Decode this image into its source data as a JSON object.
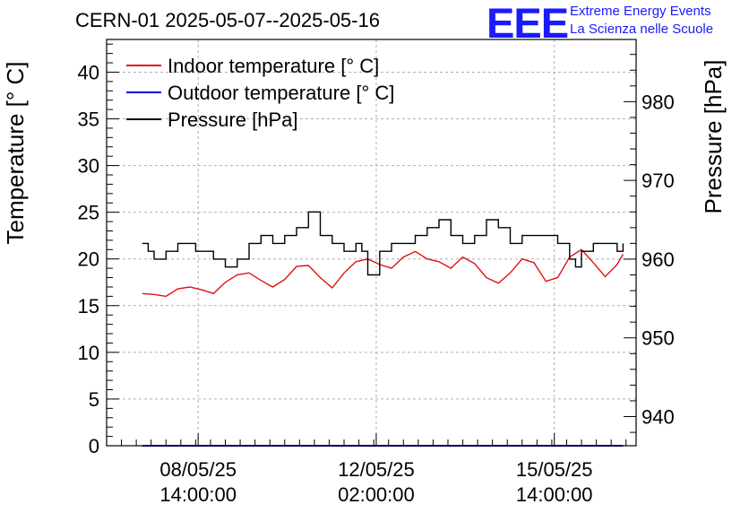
{
  "header": {
    "title": "CERN-01 2025-05-07--2025-05-16",
    "logo_text": "EEE",
    "logo_line1": "Extreme Energy Events",
    "logo_line2": "La Scienza nelle Scuole"
  },
  "colors": {
    "indoor": "#e01010",
    "outdoor": "#0000dd",
    "pressure": "#000000",
    "logo": "#1a1aff",
    "grid": "#b0b0b0"
  },
  "chart_data": {
    "type": "line",
    "title": "CERN-01 2025-05-07--2025-05-16",
    "ylabel": "Temperature [° C]",
    "y2label": "Pressure [hPa]",
    "xlabel": "",
    "ylim": [
      0,
      43.5
    ],
    "y2lim": [
      936.3,
      987.9
    ],
    "yticks": [
      0,
      5,
      10,
      15,
      20,
      25,
      30,
      35,
      40
    ],
    "y2ticks": [
      940,
      950,
      960,
      970,
      980
    ],
    "xlim": [
      0,
      8.92
    ],
    "xticks": [
      {
        "x": 1.542,
        "label1": "08/05/25",
        "label2": "14:00:00"
      },
      {
        "x": 4.542,
        "label1": "12/05/25",
        "label2": "02:00:00"
      },
      {
        "x": 7.542,
        "label1": "15/05/25",
        "label2": "14:00:00"
      }
    ],
    "grid": true,
    "legend_position": "top-left",
    "series": [
      {
        "name": "Indoor temperature [° C]",
        "axis": "left",
        "x": [
          0.6,
          0.8,
          1.0,
          1.2,
          1.4,
          1.6,
          1.8,
          2.0,
          2.2,
          2.4,
          2.6,
          2.8,
          3.0,
          3.2,
          3.4,
          3.6,
          3.8,
          4.0,
          4.2,
          4.4,
          4.6,
          4.8,
          5.0,
          5.2,
          5.4,
          5.6,
          5.8,
          6.0,
          6.2,
          6.4,
          6.6,
          6.8,
          7.0,
          7.2,
          7.4,
          7.6,
          7.8,
          8.0,
          8.2,
          8.4,
          8.6,
          8.7
        ],
        "values": [
          16.3,
          16.2,
          16.0,
          16.8,
          17.0,
          16.7,
          16.3,
          17.5,
          18.3,
          18.5,
          17.7,
          17.0,
          17.8,
          19.2,
          19.3,
          18.0,
          16.9,
          18.5,
          19.7,
          20.0,
          19.4,
          19.0,
          20.2,
          20.8,
          20.0,
          19.7,
          19.0,
          20.2,
          19.5,
          18.0,
          17.4,
          18.5,
          20.0,
          19.6,
          17.6,
          18.0,
          20.2,
          21.0,
          19.6,
          18.1,
          19.4,
          20.5
        ]
      },
      {
        "name": "Outdoor temperature [° C]",
        "axis": "left",
        "x": [
          0.6,
          8.7
        ],
        "values": [
          0,
          0
        ]
      },
      {
        "name": "Pressure [hPa]",
        "axis": "right",
        "step": true,
        "x": [
          0.6,
          0.7,
          0.8,
          1.0,
          1.2,
          1.5,
          1.8,
          2.0,
          2.2,
          2.4,
          2.6,
          2.8,
          3.0,
          3.2,
          3.4,
          3.6,
          3.8,
          4.0,
          4.2,
          4.3,
          4.4,
          4.6,
          4.8,
          5.0,
          5.2,
          5.4,
          5.6,
          5.8,
          6.0,
          6.2,
          6.4,
          6.6,
          6.8,
          7.0,
          7.2,
          7.4,
          7.6,
          7.8,
          7.9,
          8.0,
          8.2,
          8.4,
          8.6,
          8.7
        ],
        "values": [
          962,
          961,
          960,
          961,
          962,
          961,
          960,
          959,
          960,
          962,
          963,
          962,
          963,
          964,
          966,
          963,
          962,
          961,
          962,
          961,
          958,
          961,
          962,
          962,
          963,
          964,
          965,
          963,
          962,
          963,
          965,
          964,
          962,
          963,
          963,
          963,
          962,
          960,
          959,
          961,
          962,
          962,
          961,
          962
        ]
      }
    ]
  }
}
